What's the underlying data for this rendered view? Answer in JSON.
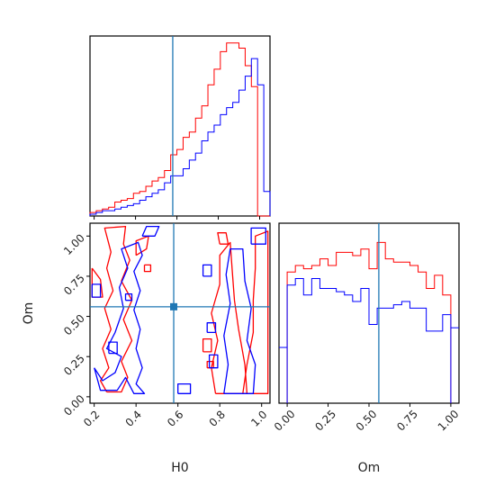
{
  "chart_data": {
    "type": "corner",
    "colors": {
      "red": "#ff0000",
      "blue": "#0000ff",
      "truth": "#1f77b4"
    },
    "truth": {
      "H0": 0.58,
      "Om": 0.56
    },
    "xlabels": {
      "H0": "H0",
      "Om": "Om"
    },
    "ylabel": "Om",
    "panels": [
      {
        "id": "hist-H0",
        "type": "step-histogram",
        "xlim": [
          0.18,
          1.05
        ],
        "bin_edges": [
          0.18,
          0.21,
          0.24,
          0.27,
          0.3,
          0.33,
          0.36,
          0.39,
          0.42,
          0.45,
          0.48,
          0.51,
          0.54,
          0.57,
          0.6,
          0.63,
          0.66,
          0.69,
          0.72,
          0.75,
          0.78,
          0.81,
          0.84,
          0.87,
          0.9,
          0.93,
          0.96,
          0.99,
          1.02,
          1.05
        ],
        "series": [
          {
            "name": "",
            "color": "red",
            "values": [
              2,
              3,
              4,
              5,
              8,
              9,
              10,
              13,
              14,
              17,
              20,
              22,
              26,
              35,
              38,
              45,
              48,
              56,
              63,
              75,
              84,
              94,
              99,
              99,
              96,
              86,
              74,
              0,
              0
            ]
          },
          {
            "name": "",
            "color": "blue",
            "values": [
              1,
              2,
              3,
              3,
              4,
              5,
              6,
              7,
              9,
              11,
              13,
              15,
              19,
              23,
              23,
              27,
              32,
              36,
              43,
              48,
              52,
              58,
              62,
              65,
              72,
              80,
              90,
              75,
              14
            ]
          }
        ]
      },
      {
        "id": "hist-Om",
        "type": "step-histogram",
        "xlim": [
          -0.05,
          1.05
        ],
        "xticks": [
          "0.00",
          "0.25",
          "0.50",
          "0.75",
          "1.00"
        ],
        "xtick_values": [
          0,
          0.25,
          0.5,
          0.75,
          1.0
        ],
        "bin_edges": [
          0.0,
          0.05,
          0.1,
          0.15,
          0.2,
          0.25,
          0.3,
          0.35,
          0.4,
          0.45,
          0.5,
          0.55,
          0.6,
          0.65,
          0.7,
          0.75,
          0.8,
          0.85,
          0.9,
          0.95,
          1.0
        ],
        "series": [
          {
            "name": "",
            "color": "red",
            "values": [
              80,
              84,
              82,
              84,
              88,
              84,
              92,
              92,
              90,
              94,
              82,
              98,
              88,
              86,
              86,
              84,
              80,
              70,
              78,
              66
            ]
          },
          {
            "name": "",
            "color": "blue",
            "values": [
              72,
              76,
              66,
              76,
              70,
              70,
              68,
              66,
              62,
              70,
              48,
              58,
              58,
              60,
              62,
              58,
              58,
              44,
              44,
              54
            ]
          }
        ]
      },
      {
        "id": "contour-H0-Om",
        "type": "contour",
        "xlim": [
          0.18,
          1.04
        ],
        "ylim": [
          -0.04,
          1.08
        ],
        "xticks": [
          "0.2",
          "0.4",
          "0.6",
          "0.8",
          "1.0"
        ],
        "xtick_values": [
          0.2,
          0.4,
          0.6,
          0.8,
          1.0
        ],
        "yticks": [
          "0.00",
          "0.25",
          "0.50",
          "0.75",
          "1.00"
        ],
        "ytick_values": [
          0,
          0.25,
          0.5,
          0.75,
          1.0
        ],
        "series": [
          {
            "name": "",
            "color": "red",
            "contours": [
              [
                [
                  0.26,
                  0.03
                ],
                [
                  0.23,
                  0.1
                ],
                [
                  0.27,
                  0.18
                ],
                [
                  0.24,
                  0.3
                ],
                [
                  0.28,
                  0.42
                ],
                [
                  0.25,
                  0.55
                ],
                [
                  0.29,
                  0.66
                ],
                [
                  0.26,
                  0.8
                ],
                [
                  0.28,
                  0.9
                ],
                [
                  0.25,
                  1.05
                ],
                [
                  0.35,
                  1.06
                ],
                [
                  0.34,
                  0.95
                ],
                [
                  0.37,
                  0.85
                ],
                [
                  0.33,
                  0.72
                ],
                [
                  0.38,
                  0.6
                ],
                [
                  0.34,
                  0.48
                ],
                [
                  0.38,
                  0.35
                ],
                [
                  0.33,
                  0.22
                ],
                [
                  0.36,
                  0.12
                ],
                [
                  0.33,
                  0.03
                ],
                [
                  0.26,
                  0.03
                ]
              ],
              [
                [
                  0.19,
                  0.8
                ],
                [
                  0.19,
                  0.62
                ],
                [
                  0.24,
                  0.62
                ],
                [
                  0.23,
                  0.73
                ],
                [
                  0.19,
                  0.8
                ]
              ],
              [
                [
                  0.4,
                  0.88
                ],
                [
                  0.4,
                  0.97
                ],
                [
                  0.46,
                  1.0
                ],
                [
                  0.45,
                  0.92
                ],
                [
                  0.4,
                  0.88
                ]
              ],
              [
                [
                  0.44,
                  0.82
                ],
                [
                  0.44,
                  0.78
                ],
                [
                  0.47,
                  0.78
                ],
                [
                  0.47,
                  0.82
                ],
                [
                  0.44,
                  0.82
                ]
              ],
              [
                [
                  0.78,
                  0.02
                ],
                [
                  0.76,
                  0.18
                ],
                [
                  0.79,
                  0.35
                ],
                [
                  0.76,
                  0.52
                ],
                [
                  0.8,
                  0.7
                ],
                [
                  0.8,
                  0.88
                ],
                [
                  0.85,
                  0.96
                ],
                [
                  0.86,
                  0.78
                ],
                [
                  0.87,
                  0.6
                ],
                [
                  0.89,
                  0.42
                ],
                [
                  0.92,
                  0.2
                ],
                [
                  0.93,
                  0.02
                ],
                [
                  0.78,
                  0.02
                ]
              ],
              [
                [
                  0.91,
                  0.02
                ],
                [
                  0.93,
                  0.2
                ],
                [
                  0.96,
                  0.4
                ],
                [
                  0.96,
                  0.6
                ],
                [
                  0.97,
                  0.8
                ],
                [
                  0.97,
                  1.0
                ],
                [
                  1.03,
                  1.03
                ],
                [
                  1.03,
                  0.02
                ],
                [
                  0.91,
                  0.02
                ]
              ],
              [
                [
                  0.72,
                  0.28
                ],
                [
                  0.72,
                  0.36
                ],
                [
                  0.76,
                  0.36
                ],
                [
                  0.76,
                  0.28
                ],
                [
                  0.72,
                  0.28
                ]
              ],
              [
                [
                  0.74,
                  0.18
                ],
                [
                  0.74,
                  0.22
                ],
                [
                  0.77,
                  0.22
                ],
                [
                  0.77,
                  0.18
                ],
                [
                  0.74,
                  0.18
                ]
              ],
              [
                [
                  0.8,
                  0.95
                ],
                [
                  0.79,
                  1.02
                ],
                [
                  0.83,
                  1.02
                ],
                [
                  0.84,
                  0.95
                ],
                [
                  0.8,
                  0.95
                ]
              ]
            ]
          },
          {
            "name": "",
            "color": "blue",
            "contours": [
              [
                [
                  0.2,
                  0.18
                ],
                [
                  0.24,
                  0.1
                ],
                [
                  0.3,
                  0.15
                ],
                [
                  0.33,
                  0.25
                ],
                [
                  0.26,
                  0.3
                ],
                [
                  0.3,
                  0.4
                ],
                [
                  0.34,
                  0.55
                ],
                [
                  0.32,
                  0.68
                ],
                [
                  0.36,
                  0.8
                ],
                [
                  0.33,
                  0.92
                ],
                [
                  0.41,
                  0.96
                ],
                [
                  0.43,
                  0.88
                ],
                [
                  0.39,
                  0.78
                ],
                [
                  0.42,
                  0.66
                ],
                [
                  0.39,
                  0.54
                ],
                [
                  0.42,
                  0.42
                ],
                [
                  0.4,
                  0.3
                ],
                [
                  0.43,
                  0.18
                ],
                [
                  0.4,
                  0.08
                ],
                [
                  0.44,
                  0.02
                ],
                [
                  0.39,
                  0.02
                ],
                [
                  0.35,
                  0.12
                ],
                [
                  0.31,
                  0.04
                ],
                [
                  0.23,
                  0.04
                ],
                [
                  0.2,
                  0.18
                ]
              ],
              [
                [
                  0.27,
                  0.27
                ],
                [
                  0.27,
                  0.34
                ],
                [
                  0.31,
                  0.34
                ],
                [
                  0.31,
                  0.27
                ],
                [
                  0.27,
                  0.27
                ]
              ],
              [
                [
                  0.35,
                  0.6
                ],
                [
                  0.35,
                  0.64
                ],
                [
                  0.38,
                  0.64
                ],
                [
                  0.38,
                  0.6
                ],
                [
                  0.35,
                  0.6
                ]
              ],
              [
                [
                  0.19,
                  0.7
                ],
                [
                  0.19,
                  0.62
                ],
                [
                  0.23,
                  0.62
                ],
                [
                  0.23,
                  0.7
                ],
                [
                  0.19,
                  0.7
                ]
              ],
              [
                [
                  0.43,
                  1.0
                ],
                [
                  0.45,
                  1.06
                ],
                [
                  0.51,
                  1.06
                ],
                [
                  0.49,
                  1.0
                ],
                [
                  0.43,
                  1.0
                ]
              ],
              [
                [
                  0.6,
                  0.02
                ],
                [
                  0.6,
                  0.08
                ],
                [
                  0.66,
                  0.08
                ],
                [
                  0.66,
                  0.02
                ],
                [
                  0.6,
                  0.02
                ]
              ],
              [
                [
                  0.82,
                  0.02
                ],
                [
                  0.84,
                  0.2
                ],
                [
                  0.82,
                  0.38
                ],
                [
                  0.85,
                  0.58
                ],
                [
                  0.83,
                  0.76
                ],
                [
                  0.85,
                  0.92
                ],
                [
                  0.91,
                  0.92
                ],
                [
                  0.92,
                  0.72
                ],
                [
                  0.95,
                  0.55
                ],
                [
                  0.93,
                  0.35
                ],
                [
                  0.97,
                  0.2
                ],
                [
                  0.96,
                  0.02
                ],
                [
                  0.82,
                  0.02
                ]
              ],
              [
                [
                  0.72,
                  0.75
                ],
                [
                  0.72,
                  0.82
                ],
                [
                  0.76,
                  0.82
                ],
                [
                  0.76,
                  0.75
                ],
                [
                  0.72,
                  0.75
                ]
              ],
              [
                [
                  0.74,
                  0.4
                ],
                [
                  0.74,
                  0.46
                ],
                [
                  0.78,
                  0.46
                ],
                [
                  0.78,
                  0.4
                ],
                [
                  0.74,
                  0.4
                ]
              ],
              [
                [
                  0.75,
                  0.18
                ],
                [
                  0.75,
                  0.26
                ],
                [
                  0.79,
                  0.26
                ],
                [
                  0.79,
                  0.18
                ],
                [
                  0.75,
                  0.18
                ]
              ],
              [
                [
                  0.95,
                  0.95
                ],
                [
                  0.95,
                  1.05
                ],
                [
                  1.02,
                  1.05
                ],
                [
                  1.02,
                  0.95
                ],
                [
                  0.95,
                  0.95
                ]
              ]
            ]
          }
        ]
      }
    ]
  }
}
